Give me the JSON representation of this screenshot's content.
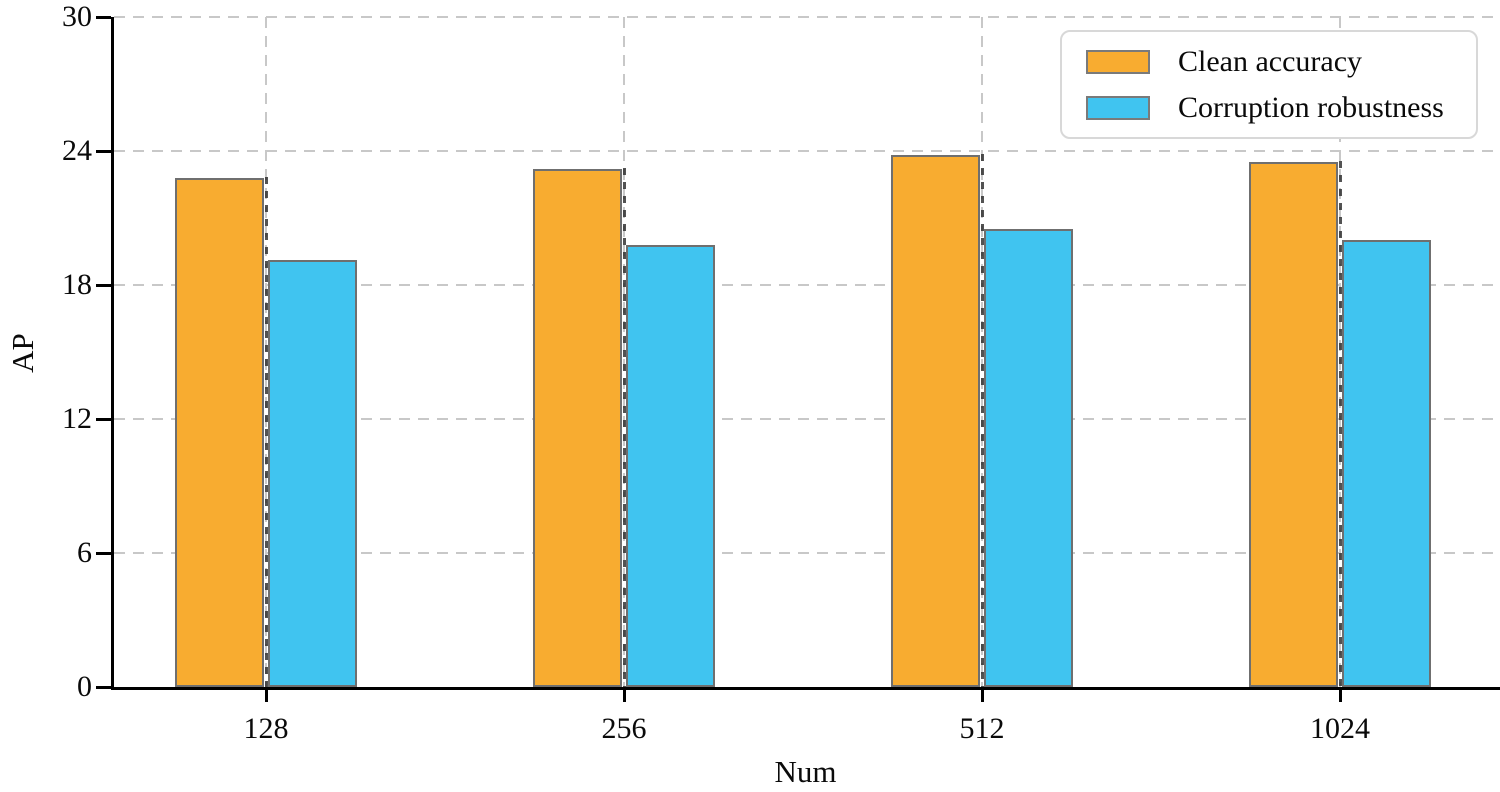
{
  "chart_data": {
    "type": "bar",
    "title": "",
    "xlabel": "Num",
    "ylabel": "AP",
    "categories": [
      "128",
      "256",
      "512",
      "1024"
    ],
    "series": [
      {
        "name": "Clean accuracy",
        "color": "#F8AC30",
        "edge_color": "#6f6f6f",
        "values": [
          22.8,
          23.2,
          23.8,
          23.5
        ]
      },
      {
        "name": "Corruption robustness",
        "color": "#40C4F0",
        "edge_color": "#6f6f6f",
        "values": [
          19.1,
          19.8,
          20.5,
          20.0
        ]
      }
    ],
    "ylim": [
      0,
      30
    ],
    "yticks": [
      0,
      6,
      12,
      18,
      24,
      30
    ],
    "grid": {
      "style": "dashed",
      "color": "#c8c8c8",
      "horizontal": true,
      "vertical": true
    },
    "legend": {
      "position": "top-right",
      "items": [
        "Clean accuracy",
        "Corruption robustness"
      ]
    }
  }
}
